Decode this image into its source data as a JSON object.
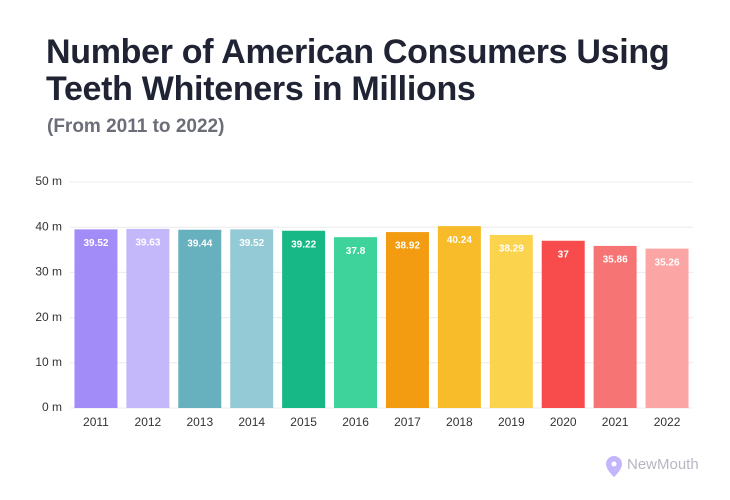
{
  "chart_data": {
    "type": "bar",
    "title": "Number of American Consumers Using Teeth Whiteners in Millions",
    "subtitle": "(From 2011 to 2022)",
    "categories": [
      "2011",
      "2012",
      "2013",
      "2014",
      "2015",
      "2016",
      "2017",
      "2018",
      "2019",
      "2020",
      "2021",
      "2022"
    ],
    "values": [
      39.52,
      39.63,
      39.44,
      39.52,
      39.22,
      37.8,
      38.92,
      40.24,
      38.29,
      37,
      35.86,
      35.26
    ],
    "colors": [
      "#a28cf7",
      "#c4b8fb",
      "#67b0be",
      "#94cad5",
      "#17b885",
      "#3dd39a",
      "#f39c12",
      "#f8bb29",
      "#fcd34d",
      "#f84b4b",
      "#f77474",
      "#fca5a5"
    ],
    "ylim": [
      0,
      50
    ],
    "yticks": [
      {
        "value": 0,
        "label": "0 m"
      },
      {
        "value": 10,
        "label": "10 m"
      },
      {
        "value": 20,
        "label": "20 m"
      },
      {
        "value": 30,
        "label": "30 m"
      },
      {
        "value": 40,
        "label": "40 m"
      },
      {
        "value": 50,
        "label": "50 m"
      }
    ],
    "grid": true,
    "brand": "NewMouth"
  }
}
